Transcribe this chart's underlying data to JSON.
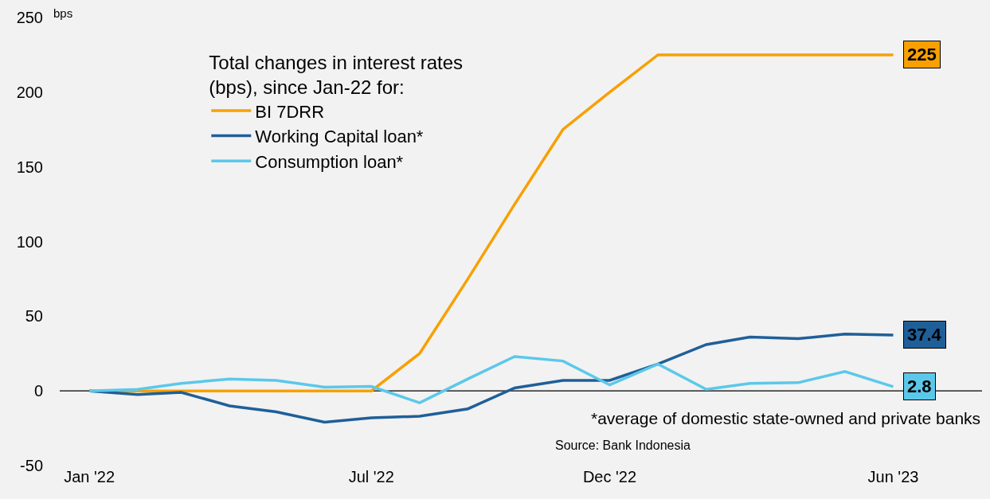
{
  "chart_data": {
    "type": "line",
    "x": [
      "2022-01",
      "2022-02",
      "2022-03",
      "2022-04",
      "2022-05",
      "2022-06",
      "2022-07",
      "2022-08",
      "2022-09",
      "2022-10",
      "2022-11",
      "2022-12",
      "2023-01",
      "2023-02",
      "2023-03",
      "2023-04",
      "2023-05",
      "2023-06"
    ],
    "series": [
      {
        "name": "BI 7DRR",
        "color": "#f7a000",
        "values": [
          0,
          0,
          0,
          0,
          0,
          0,
          0,
          25,
          75,
          125,
          175,
          200,
          225,
          225,
          225,
          225,
          225,
          225
        ],
        "value_labels": [
          null,
          null,
          null,
          null,
          null,
          null,
          null,
          null,
          null,
          null,
          null,
          null,
          null,
          null,
          null,
          null,
          null,
          "225"
        ]
      },
      {
        "name": "Working Capital loan*",
        "color": "#1f5f99",
        "values": [
          0,
          -2.5,
          -1,
          -10,
          -14,
          -21,
          -18,
          -17,
          -12,
          2,
          7,
          7,
          18,
          31,
          36,
          35,
          38,
          37.4
        ],
        "value_labels": [
          null,
          null,
          null,
          null,
          null,
          null,
          null,
          null,
          null,
          null,
          null,
          null,
          null,
          null,
          null,
          null,
          null,
          "37.4"
        ]
      },
      {
        "name": "Consumption loan*",
        "color": "#5bc8ea",
        "values": [
          0,
          1,
          5,
          8,
          7,
          2.5,
          3,
          -8,
          8,
          23,
          20,
          4,
          18,
          1,
          5,
          5.5,
          13,
          2.8
        ],
        "value_labels": [
          null,
          null,
          null,
          null,
          null,
          null,
          null,
          null,
          null,
          null,
          null,
          null,
          null,
          null,
          null,
          null,
          null,
          "2.8"
        ]
      }
    ],
    "ylabel": "bps",
    "legend_title": "Total changes in interest rates\n(bps), since Jan-22 for:",
    "legend": "top left",
    "xlim": [
      "2021-12-13",
      "2023-07-28"
    ],
    "xticks": [
      {
        "value": "2022-01",
        "label": "Jan '22"
      },
      {
        "value": "2022-07",
        "label": "Jul '22"
      },
      {
        "value": "2022-12",
        "label": "Dec '22"
      },
      {
        "value": "2023-06",
        "label": "Jun '23"
      }
    ],
    "ylim": [
      -50,
      250
    ],
    "yticks": [
      -50,
      0,
      50,
      100,
      150,
      200,
      250
    ],
    "grid": false,
    "marker": "none",
    "line_style": "solid",
    "ref_lines": [
      {
        "axis": "y",
        "value": 0,
        "label": null,
        "color": "#000000"
      }
    ],
    "annotations": [
      "*average of domestic state-owned and private banks",
      "Source: Bank Indonesia"
    ]
  }
}
